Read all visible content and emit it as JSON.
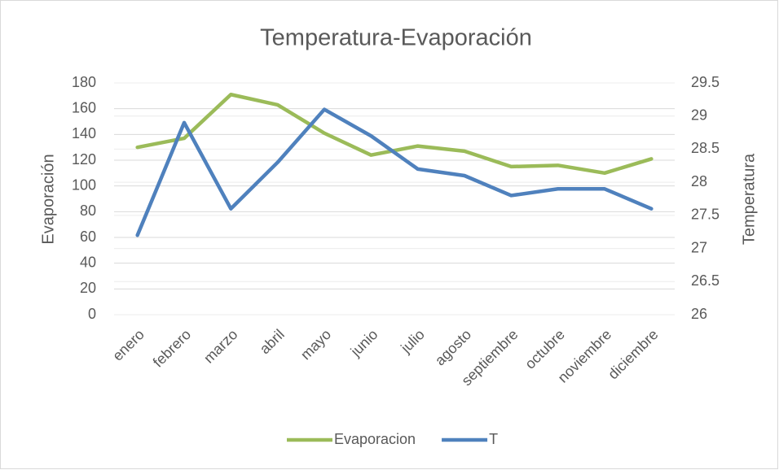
{
  "chart_data": {
    "type": "line",
    "title": "Temperatura-Evaporación",
    "y_label": "Evaporación",
    "y2_label": "Temperatura",
    "categories": [
      "enero",
      "febrero",
      "marzo",
      "abril",
      "mayo",
      "junio",
      "julio",
      "agosto",
      "septiembre",
      "octubre",
      "noviembre",
      "diciembre"
    ],
    "series": [
      {
        "name": "Evaporacion",
        "color": "#9bbb59",
        "values": [
          130,
          137,
          171,
          163,
          141,
          124,
          131,
          127,
          115,
          116,
          110,
          121
        ]
      },
      {
        "name": "T",
        "color": "#4f81bd",
        "axis": "y2",
        "values": [
          27.2,
          28.9,
          27.6,
          28.3,
          29.1,
          28.7,
          28.2,
          28.1,
          27.8,
          27.9,
          27.9,
          27.6
        ]
      }
    ],
    "ylim": [
      0,
      180
    ],
    "yticks": [
      0,
      20,
      40,
      60,
      80,
      100,
      120,
      140,
      160,
      180
    ],
    "y2lim": [
      26,
      29.5
    ],
    "y2ticks": [
      26,
      26.5,
      27,
      27.5,
      28,
      28.5,
      29,
      29.5
    ],
    "grid": true,
    "legend": "bottom"
  }
}
